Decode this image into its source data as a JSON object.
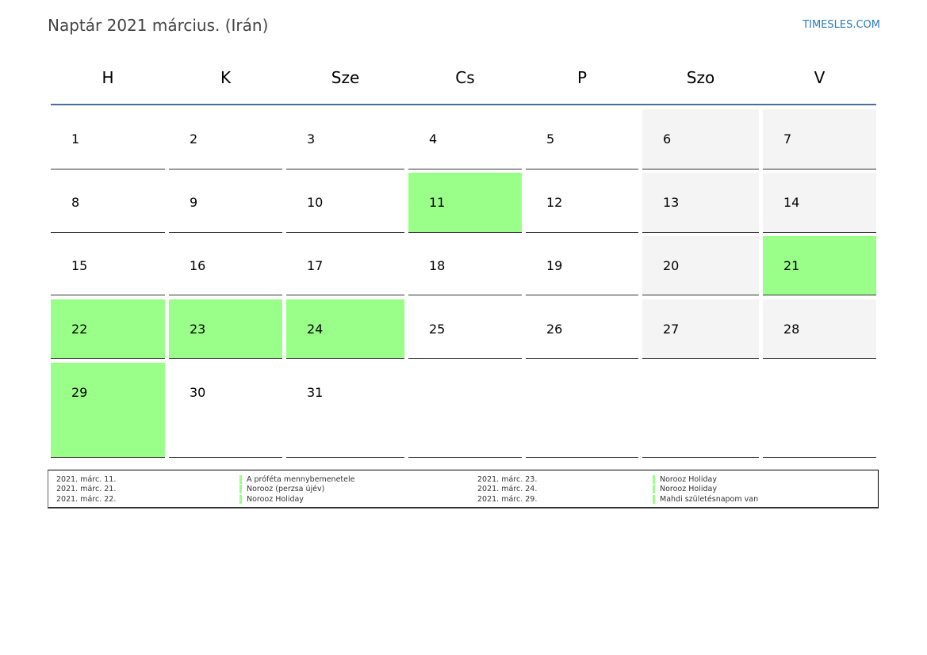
{
  "header": {
    "title": "Naptár 2021 március. (Irán)",
    "brand": "TIMESLES.COM"
  },
  "colors": {
    "holiday": "#99ff88",
    "weekend": "#f4f4f4",
    "header_line": "#4a6d9a"
  },
  "weekdays": [
    "H",
    "K",
    "Sze",
    "Cs",
    "P",
    "Szo",
    "V"
  ],
  "weeks": [
    [
      {
        "day": "1",
        "type": "normal"
      },
      {
        "day": "2",
        "type": "normal"
      },
      {
        "day": "3",
        "type": "normal"
      },
      {
        "day": "4",
        "type": "normal"
      },
      {
        "day": "5",
        "type": "normal"
      },
      {
        "day": "6",
        "type": "weekend"
      },
      {
        "day": "7",
        "type": "weekend"
      }
    ],
    [
      {
        "day": "8",
        "type": "normal"
      },
      {
        "day": "9",
        "type": "normal"
      },
      {
        "day": "10",
        "type": "normal"
      },
      {
        "day": "11",
        "type": "holiday"
      },
      {
        "day": "12",
        "type": "normal"
      },
      {
        "day": "13",
        "type": "weekend"
      },
      {
        "day": "14",
        "type": "weekend"
      }
    ],
    [
      {
        "day": "15",
        "type": "normal"
      },
      {
        "day": "16",
        "type": "normal"
      },
      {
        "day": "17",
        "type": "normal"
      },
      {
        "day": "18",
        "type": "normal"
      },
      {
        "day": "19",
        "type": "normal"
      },
      {
        "day": "20",
        "type": "weekend"
      },
      {
        "day": "21",
        "type": "holiday"
      }
    ],
    [
      {
        "day": "22",
        "type": "holiday"
      },
      {
        "day": "23",
        "type": "holiday"
      },
      {
        "day": "24",
        "type": "holiday"
      },
      {
        "day": "25",
        "type": "normal"
      },
      {
        "day": "26",
        "type": "normal"
      },
      {
        "day": "27",
        "type": "weekend"
      },
      {
        "day": "28",
        "type": "weekend"
      }
    ],
    [
      {
        "day": "29",
        "type": "holiday"
      },
      {
        "day": "30",
        "type": "normal"
      },
      {
        "day": "31",
        "type": "normal"
      },
      {
        "day": "",
        "type": "empty"
      },
      {
        "day": "",
        "type": "empty"
      },
      {
        "day": "",
        "type": "empty"
      },
      {
        "day": "",
        "type": "empty"
      }
    ]
  ],
  "holidays": [
    {
      "date": "2021. márc. 11.",
      "name": "A próféta mennybemenetele"
    },
    {
      "date": "2021. márc. 21.",
      "name": "Norooz (perzsa újév)"
    },
    {
      "date": "2021. márc. 22.",
      "name": "Norooz Holiday"
    },
    {
      "date": "2021. márc. 23.",
      "name": "Norooz Holiday"
    },
    {
      "date": "2021. márc. 24.",
      "name": "Norooz Holiday"
    },
    {
      "date": "2021. márc. 29.",
      "name": "Mahdi születésnapom van"
    }
  ]
}
